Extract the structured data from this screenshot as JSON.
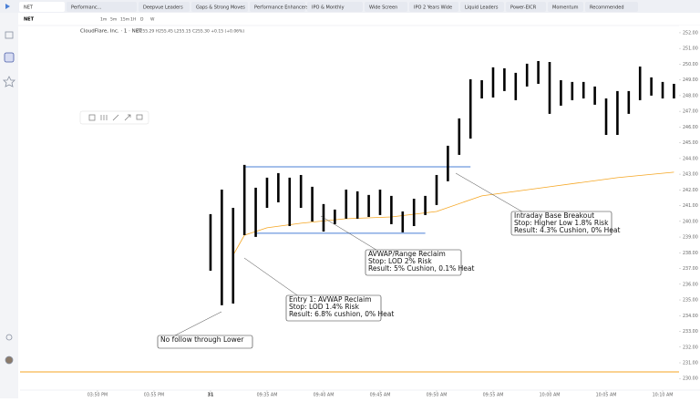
{
  "tabs": [
    "NET",
    "Performanc...",
    "Deepvue Leaders",
    "Gaps & Strong Moves",
    "Performance Enhancers",
    "IPO & Monthly",
    "Wide Screen",
    "IPO 2 Years Wide",
    "Liquid Leaders",
    "Power-EICR",
    "Momentum",
    "Recommended"
  ],
  "toolbar": {
    "symbol": "NET",
    "intervals": [
      "1m",
      "5m",
      "15m",
      "1H",
      "D",
      "W"
    ]
  },
  "chart_data": {
    "type": "range-bar",
    "title": "CloudFlare, Inc. · 1 · NET",
    "ohlc_legend": "O255.29 H255.45 L255.15 C255.30 +0.15 (+0.06%)",
    "color": "#000000",
    "x": [
      0,
      1,
      2,
      3,
      4,
      5,
      6,
      7,
      8,
      9,
      10,
      11,
      12,
      13,
      14,
      15,
      16,
      17,
      18,
      19,
      20,
      21,
      22,
      23,
      24,
      25,
      26,
      27,
      28,
      29,
      30,
      31,
      32,
      33,
      34,
      35,
      36,
      37,
      38,
      39,
      40,
      41
    ],
    "highs": [
      240.46,
      242.02,
      240.86,
      243.59,
      242.14,
      242.78,
      243.07,
      242.78,
      242.95,
      242.2,
      241.1,
      240.75,
      242.02,
      241.91,
      241.68,
      242.02,
      241.62,
      240.63,
      241.44,
      241.62,
      242.95,
      244.81,
      246.55,
      249.04,
      248.98,
      249.8,
      249.74,
      249.45,
      250.03,
      250.2,
      250.14,
      248.98,
      248.87,
      248.87,
      248.58,
      247.82,
      248.29,
      248.29,
      249.85,
      249.16,
      248.87,
      248.75
    ],
    "lows": [
      236.86,
      234.66,
      234.77,
      239.12,
      239.01,
      240.86,
      241.21,
      239.7,
      240.86,
      239.99,
      239.35,
      239.82,
      240.17,
      240.17,
      240.28,
      240.4,
      239.82,
      239.3,
      239.7,
      240.4,
      241.04,
      242.55,
      244.23,
      245.27,
      247.82,
      247.88,
      248.29,
      247.71,
      248.58,
      248.75,
      246.84,
      247.36,
      247.71,
      247.82,
      247.42,
      245.5,
      245.5,
      246.84,
      247.71,
      248.0,
      247.82,
      247.82
    ],
    "avwap": {
      "color": "#f5a623",
      "x": [
        2,
        3,
        5,
        8,
        12,
        16,
        20,
        24,
        30,
        36,
        41
      ],
      "values": [
        237.85,
        239.12,
        239.59,
        239.88,
        240.17,
        240.28,
        240.63,
        241.62,
        242.2,
        242.78,
        243.13
      ]
    },
    "levels": [
      {
        "color": "#4a7fd6",
        "value": 243.47,
        "from": 3,
        "to": 23
      },
      {
        "color": "#4a7fd6",
        "value": 239.24,
        "from": 4,
        "to": 19
      },
      {
        "color": "#f5a623",
        "value": 230.42,
        "from": -16.85,
        "to": 41.45
      }
    ],
    "xlim": [
      -16.85,
      41.45
    ],
    "ylim": [
      229.26,
      252.46
    ],
    "xticks": [
      {
        "value": -10,
        "label": "03:50 PM"
      },
      {
        "value": -5,
        "label": "03:55 PM"
      },
      0,
      {
        "value": 5,
        "label": "09:35 AM"
      },
      {
        "value": 10,
        "label": "09:40 AM"
      },
      {
        "value": 15,
        "label": "09:45 AM"
      },
      {
        "value": 20,
        "label": "09:50 AM"
      },
      {
        "value": 25,
        "label": "09:55 AM"
      },
      {
        "value": 30,
        "label": "10:00 AM"
      },
      {
        "value": 35,
        "label": "10:05 AM"
      },
      {
        "value": 40,
        "label": "10:10 AM"
      }
    ],
    "day_label": "31",
    "yticks": [
      {
        "value": 252,
        "label": "252.00"
      },
      {
        "value": 251,
        "label": "251.00"
      },
      {
        "value": 250,
        "label": "250.00"
      },
      {
        "value": 249,
        "label": "249.00"
      },
      {
        "value": 248,
        "label": "248.00"
      },
      {
        "value": 247,
        "label": "247.00"
      },
      {
        "value": 246,
        "label": "246.00"
      },
      {
        "value": 245,
        "label": "245.00"
      },
      {
        "value": 244,
        "label": "244.00"
      },
      {
        "value": 243,
        "label": "243.00"
      },
      {
        "value": 242,
        "label": "242.00"
      },
      {
        "value": 241,
        "label": "241.00"
      },
      {
        "value": 240,
        "label": "240.00"
      },
      {
        "value": 239,
        "label": "239.00"
      },
      {
        "value": 238,
        "label": "238.00"
      },
      {
        "value": 237,
        "label": "237.00"
      },
      {
        "value": 236,
        "label": "236.00"
      },
      {
        "value": 235,
        "label": "235.00"
      },
      {
        "value": 234,
        "label": "234.00"
      },
      {
        "value": 233,
        "label": "233.00"
      },
      {
        "value": 232,
        "label": "232.00"
      },
      {
        "value": 231,
        "label": "231.00"
      },
      {
        "value": 230,
        "label": "230.00"
      }
    ],
    "annotations": [
      {
        "lines": [
          "Intraday Base Breakout",
          "Stop: Higher Low 1.8% Risk",
          "Result: 4.3% Cushion, 0% Heat"
        ]
      },
      {
        "lines": [
          "AVWAP/Range Reclaim",
          "Stop: LOD 2% Risk",
          "Result: 5% Cushion, 0.1% Heat"
        ]
      },
      {
        "lines": [
          "Entry 1: AVWAP Reclaim",
          "Stop: LOD 1.4% Risk",
          "Result: 6.8% cushion, 0% Heat"
        ]
      },
      {
        "lines": [
          "No follow through Lower"
        ]
      }
    ]
  }
}
